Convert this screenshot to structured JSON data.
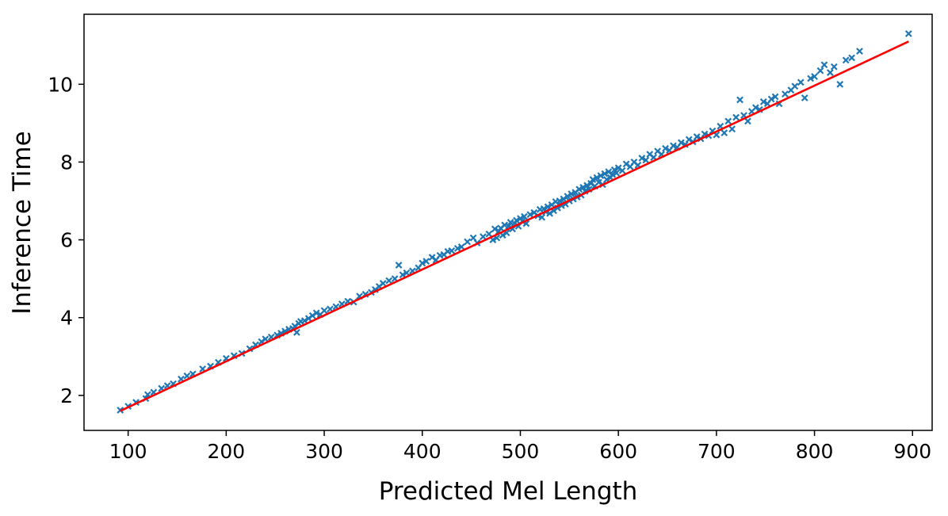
{
  "chart_data": {
    "type": "scatter",
    "title": "",
    "xlabel": "Predicted Mel Length",
    "ylabel": "Inference Time",
    "xlim": [
      55,
      920
    ],
    "ylim": [
      1.1,
      11.8
    ],
    "xticks": [
      100,
      200,
      300,
      400,
      500,
      600,
      700,
      800,
      900
    ],
    "yticks": [
      2,
      4,
      6,
      8,
      10
    ],
    "grid": false,
    "legend": "none",
    "colors": {
      "scatter": "#1f77b4",
      "fit": "#ff0000",
      "axis": "#000000"
    },
    "series": [
      {
        "kind": "scatter-x-markers",
        "x": [
          92,
          100,
          108,
          118,
          120,
          126,
          134,
          140,
          146,
          154,
          160,
          166,
          176,
          184,
          192,
          200,
          208,
          216,
          224,
          230,
          236,
          240,
          246,
          252,
          256,
          260,
          264,
          268,
          270,
          272,
          274,
          276,
          280,
          284,
          288,
          292,
          296,
          300,
          306,
          312,
          318,
          324,
          330,
          336,
          342,
          348,
          352,
          356,
          360,
          366,
          372,
          376,
          380,
          384,
          390,
          396,
          400,
          404,
          410,
          414,
          418,
          422,
          426,
          430,
          436,
          440,
          446,
          452,
          456,
          462,
          468,
          472,
          474,
          476,
          478,
          480,
          482,
          484,
          486,
          488,
          490,
          492,
          494,
          496,
          498,
          500,
          502,
          504,
          506,
          510,
          514,
          518,
          520,
          522,
          524,
          526,
          528,
          530,
          532,
          534,
          536,
          538,
          540,
          542,
          544,
          546,
          548,
          550,
          552,
          554,
          556,
          558,
          560,
          562,
          564,
          566,
          568,
          570,
          572,
          574,
          576,
          578,
          580,
          582,
          584,
          586,
          588,
          590,
          592,
          594,
          596,
          598,
          600,
          604,
          608,
          612,
          616,
          620,
          624,
          628,
          632,
          636,
          640,
          644,
          648,
          652,
          656,
          660,
          664,
          668,
          672,
          676,
          680,
          684,
          688,
          692,
          696,
          700,
          704,
          708,
          712,
          716,
          720,
          724,
          728,
          732,
          736,
          740,
          744,
          748,
          752,
          756,
          760,
          764,
          770,
          776,
          780,
          786,
          790,
          796,
          800,
          806,
          810,
          816,
          820,
          826,
          832,
          838,
          846,
          896
        ],
        "y": [
          1.62,
          1.72,
          1.82,
          1.92,
          2.02,
          2.08,
          2.18,
          2.25,
          2.3,
          2.42,
          2.5,
          2.55,
          2.68,
          2.75,
          2.85,
          2.95,
          3.02,
          3.08,
          3.2,
          3.3,
          3.38,
          3.45,
          3.5,
          3.55,
          3.6,
          3.65,
          3.7,
          3.72,
          3.78,
          3.62,
          3.85,
          3.9,
          3.92,
          3.98,
          4.05,
          4.12,
          4.08,
          4.18,
          4.22,
          4.28,
          4.35,
          4.42,
          4.4,
          4.55,
          4.6,
          4.65,
          4.72,
          4.8,
          4.88,
          4.95,
          5.0,
          5.35,
          5.1,
          5.15,
          5.2,
          5.28,
          5.4,
          5.45,
          5.55,
          5.48,
          5.6,
          5.62,
          5.7,
          5.72,
          5.78,
          5.82,
          5.95,
          6.05,
          5.92,
          6.08,
          6.15,
          6.0,
          6.28,
          6.05,
          6.22,
          6.3,
          6.12,
          6.38,
          6.18,
          6.35,
          6.45,
          6.28,
          6.42,
          6.5,
          6.35,
          6.55,
          6.48,
          6.6,
          6.42,
          6.65,
          6.7,
          6.62,
          6.78,
          6.58,
          6.8,
          6.72,
          6.85,
          6.68,
          6.9,
          6.75,
          6.98,
          6.82,
          7.0,
          6.88,
          7.05,
          6.92,
          7.12,
          7.0,
          7.18,
          7.05,
          7.22,
          7.1,
          7.3,
          7.15,
          7.35,
          7.25,
          7.4,
          7.3,
          7.45,
          7.55,
          7.38,
          7.6,
          7.48,
          7.65,
          7.42,
          7.7,
          7.55,
          7.75,
          7.6,
          7.68,
          7.8,
          7.72,
          7.85,
          7.78,
          7.95,
          7.88,
          8.0,
          7.92,
          8.1,
          8.05,
          8.2,
          8.12,
          8.28,
          8.2,
          8.35,
          8.3,
          8.42,
          8.38,
          8.5,
          8.45,
          8.58,
          8.52,
          8.65,
          8.6,
          8.72,
          8.68,
          8.8,
          8.7,
          8.92,
          8.75,
          9.05,
          8.85,
          9.15,
          9.6,
          9.2,
          9.05,
          9.3,
          9.4,
          9.35,
          9.55,
          9.5,
          9.62,
          9.68,
          9.5,
          9.75,
          9.85,
          9.95,
          10.05,
          9.65,
          10.15,
          10.2,
          10.35,
          10.5,
          10.3,
          10.45,
          10.0,
          10.62,
          10.68,
          10.85,
          11.3
        ]
      },
      {
        "kind": "line",
        "x": [
          92,
          896
        ],
        "y": [
          1.6,
          11.1
        ]
      }
    ]
  }
}
